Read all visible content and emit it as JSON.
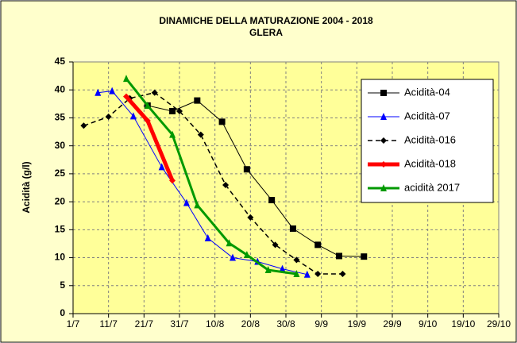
{
  "chart_data": {
    "type": "line",
    "title": "DINAMICHE DELLA MATURAZIONE  2004 - 2018",
    "subtitle": "GLERA",
    "y_label": "Acidità (g/l)",
    "xlim": [
      0,
      120
    ],
    "xticks": [
      {
        "value": 0,
        "label": "1/7"
      },
      {
        "value": 10,
        "label": "11/7"
      },
      {
        "value": 20,
        "label": "21/7"
      },
      {
        "value": 30,
        "label": "31/7"
      },
      {
        "value": 40,
        "label": "10/8"
      },
      {
        "value": 50,
        "label": "20/8"
      },
      {
        "value": 60,
        "label": "30/8"
      },
      {
        "value": 70,
        "label": "9/9"
      },
      {
        "value": 80,
        "label": "19/9"
      },
      {
        "value": 90,
        "label": "29/9"
      },
      {
        "value": 100,
        "label": "9/10"
      },
      {
        "value": 110,
        "label": "19/10"
      },
      {
        "value": 120,
        "label": "29/10"
      }
    ],
    "ylim": [
      0,
      45
    ],
    "yticks": [
      0,
      5,
      10,
      15,
      20,
      25,
      30,
      35,
      40,
      45
    ],
    "grid": true,
    "legend": "right",
    "series": [
      {
        "name": "Acidità-04",
        "color": "#000000",
        "marker": "square",
        "width": 1,
        "dashed": false,
        "x": [
          21,
          28,
          35,
          42,
          49,
          56,
          62,
          69,
          75,
          82
        ],
        "values": [
          37.2,
          36.2,
          38.1,
          34.3,
          25.8,
          20.3,
          15.2,
          12.3,
          10.3,
          10.2
        ]
      },
      {
        "name": "Acidità-07",
        "color": "#0000ff",
        "marker": "triangle",
        "width": 1,
        "dashed": false,
        "x": [
          7,
          11,
          17,
          25,
          32,
          38,
          45,
          52,
          59,
          66
        ],
        "values": [
          39.5,
          39.8,
          35.3,
          26.2,
          19.8,
          13.5,
          10,
          9.3,
          8,
          7
        ]
      },
      {
        "name": "Acidità-016",
        "color": "#000000",
        "marker": "diamond",
        "width": 1.5,
        "dashed": true,
        "x": [
          3,
          10,
          16,
          23,
          30,
          36,
          43,
          50,
          57,
          63,
          69,
          76
        ],
        "values": [
          33.6,
          35.2,
          38.5,
          39.5,
          36.2,
          32,
          23,
          17.2,
          12.3,
          9.6,
          7.1,
          7.1
        ]
      },
      {
        "name": "Acidità-018",
        "color": "#ff0000",
        "marker": "diamond",
        "width": 5,
        "dashed": false,
        "x": [
          15,
          21,
          28
        ],
        "values": [
          38.8,
          34.5,
          23.8
        ]
      },
      {
        "name": "acidità 2017",
        "color": "#009900",
        "marker": "triangle",
        "width": 3,
        "dashed": false,
        "x": [
          15,
          21,
          28,
          35,
          44,
          49,
          55,
          63
        ],
        "values": [
          42,
          37.2,
          32,
          19.4,
          12.6,
          10.5,
          7.8,
          7.1
        ]
      }
    ]
  }
}
